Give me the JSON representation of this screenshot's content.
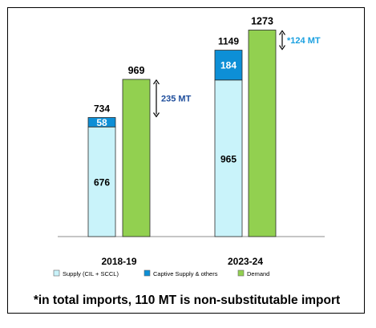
{
  "chart_data": {
    "type": "bar",
    "stacked": true,
    "categories": [
      "2018-19",
      "2023-24"
    ],
    "series": [
      {
        "name": "Supply (CIL + SCCL)",
        "color": "#c9f3fa",
        "stack": "supply",
        "values": [
          676,
          965
        ]
      },
      {
        "name": "Captive Supply & others",
        "color": "#0d8fd6",
        "stack": "supply",
        "values": [
          58,
          184
        ]
      },
      {
        "name": "Demand",
        "color": "#92d050",
        "stack": "demand",
        "values": [
          969,
          1273
        ]
      }
    ],
    "supply_totals": [
      "734",
      "1149"
    ],
    "demand_labels": [
      "969",
      "1273"
    ],
    "gap_labels": [
      "235 MT",
      "*124 MT"
    ],
    "gap_colors": [
      "#1f4e9c",
      "#1aa0e0"
    ],
    "ylim": [
      0,
      1300
    ],
    "legend_position": "bottom",
    "title": "",
    "xlabel": "",
    "ylabel": ""
  },
  "footnote": "*in total imports, 110 MT is non-substitutable import"
}
